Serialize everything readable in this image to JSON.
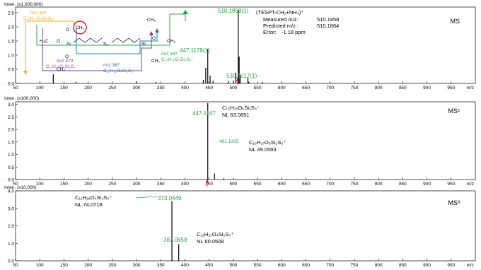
{
  "x_ticks": [
    "50",
    "100",
    "150",
    "200",
    "250",
    "300",
    "350",
    "400",
    "450",
    "500",
    "550",
    "600",
    "650",
    "700",
    "750",
    "800",
    "850",
    "900",
    "950"
  ],
  "x_unit": "m/z",
  "chart_data": [
    {
      "type": "bar",
      "panel_label": "MS",
      "intensity_label": "Inten. (x1,000,000)",
      "y_ticks": [
        "0.0",
        "0.5",
        "1.0",
        "1.5",
        "2.0",
        "2.5"
      ],
      "ylim": [
        0,
        2.7
      ],
      "xlim": [
        50,
        1000
      ],
      "peaks": [
        {
          "x": 128,
          "y": 0.32
        },
        {
          "x": 175,
          "y": 0.06
        },
        {
          "x": 300,
          "y": 0.07
        },
        {
          "x": 340,
          "y": 0.05
        },
        {
          "x": 438,
          "y": 0.12
        },
        {
          "x": 443,
          "y": 0.55
        },
        {
          "x": 447.1178,
          "y": 1.22
        },
        {
          "x": 452,
          "y": 0.28
        },
        {
          "x": 458,
          "y": 0.1
        },
        {
          "x": 490,
          "y": 0.08
        },
        {
          "x": 500,
          "y": 0.1
        },
        {
          "x": 505,
          "y": 0.38
        },
        {
          "x": 510.1858,
          "y": 2.6
        },
        {
          "x": 512,
          "y": 0.95
        },
        {
          "x": 514,
          "y": 0.3
        },
        {
          "x": 530.1017,
          "y": 0.22
        },
        {
          "x": 532,
          "y": 0.06
        },
        {
          "x": 560,
          "y": 0.05
        }
      ],
      "labels": {
        "main_peak": "510.1858(1)",
        "peak_447": "447.1178(1)",
        "peak_530": "530.1017(1)",
        "ion": "(TESPT-CH₂+NH₄)⁺",
        "measured_label": "Measured m/z :",
        "measured_value": "510.1858",
        "predicted_label": "Predicted m/z :",
        "predicted_value": "510.1864",
        "error_label": "Error:",
        "error_value": "-1.18 ppm"
      },
      "structure": {
        "mz461": "m/z 461",
        "formula461": "C₁₆H₃₇O₅Si₂S₃⁻",
        "mz373": "m/z 373",
        "formula373": "C₁₁H₂₉O₄Si₂S₃⁻",
        "mz387": "m/z 387",
        "formula387": "C₁₂H₃₁O₄Si₂S₃⁻",
        "mz447": "m/z 447",
        "formula447": "C₁₅H₃₅O₅Si₂S₃⁻",
        "si": "Si",
        "s3": "S₃",
        "o": "O",
        "ch3": "CH₃",
        "h3c": "H₃C"
      }
    },
    {
      "type": "bar",
      "panel_label": "MS²",
      "intensity_label": "Inten. (x100,000)",
      "y_ticks": [
        "0.0",
        "0.5",
        "1.0",
        "1.5",
        "2.0",
        "2.5",
        "3.0"
      ],
      "ylim": [
        0,
        3.1
      ],
      "xlim": [
        50,
        1000
      ],
      "peaks": [
        {
          "x": 447.1167,
          "y": 3.05
        },
        {
          "x": 461.1265,
          "y": 0.24
        },
        {
          "x": 480,
          "y": 0.05
        }
      ],
      "labels": {
        "peak_447": "447.1167",
        "peak_461": "461.1265",
        "frag1_formula": "C₁₅H₃₅O₅Si₂S₃⁺",
        "frag1_nl": "NL 63.0691",
        "frag2_formula": "C₁₆H₃₇O₅Si₂S₃⁺",
        "frag2_nl": "NL 49.0593"
      }
    },
    {
      "type": "bar",
      "panel_label": "MS³",
      "intensity_label": "Inten. (x10,000)",
      "y_ticks": [
        "0.0",
        "1.0",
        "2.0",
        "3.0",
        "4.0"
      ],
      "ylim": [
        0,
        4.0
      ],
      "xlim": [
        50,
        1000
      ],
      "peaks": [
        {
          "x": 373.0449,
          "y": 3.4
        },
        {
          "x": 387.0659,
          "y": 0.95
        }
      ],
      "labels": {
        "peak_373": "373.0449",
        "peak_387": "387.0659",
        "frag1_formula": "C₁₁H₂₉O₄Si₂S₃⁺",
        "frag1_nl": "NL 74.0718",
        "frag2_formula": "C₁₂H₃₁O₄Si₂S₃⁺",
        "frag2_nl": "NL 60.0508"
      }
    }
  ]
}
